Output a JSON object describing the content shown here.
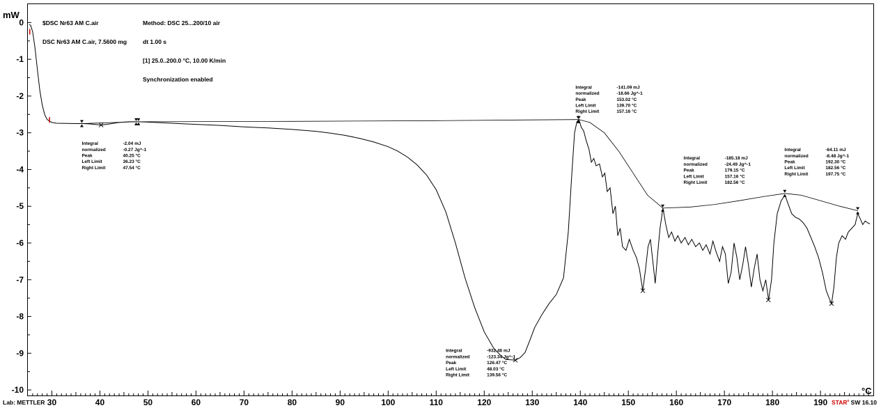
{
  "header": {
    "curve_lines": [
      "$DSC Nr63 AM C.air",
      "DSC Nr63 AM C.air, 7.5600 mg"
    ],
    "method_lines": [
      "Method: DSC 25...200/10 air",
      "dt 1.00 s",
      "[1] 25.0..200.0 °C, 10.00 K/min",
      "Synchronization enabled"
    ]
  },
  "footer": {
    "lab": "Lab: METTLER",
    "software_brand": "STAR",
    "software_version": "SW 16.10"
  },
  "colors": {
    "curve": "#000000",
    "frame": "#000000",
    "limit_marker": "#cc0000"
  },
  "chart_data": {
    "type": "line",
    "ylabel": "mW",
    "xlabel": "°C",
    "xlim": [
      25,
      201
    ],
    "ylim": [
      -10.15,
      0.5
    ],
    "x_ticks": [
      30,
      40,
      50,
      60,
      70,
      80,
      90,
      100,
      110,
      120,
      130,
      140,
      150,
      160,
      170,
      180,
      190
    ],
    "y_ticks": [
      0,
      -1,
      -2,
      -3,
      -4,
      -5,
      -6,
      -7,
      -8,
      -9,
      -10
    ],
    "grid": false,
    "series": [
      {
        "values": [
          [
            25.3,
            -0.05
          ],
          [
            25.6,
            -0.08
          ],
          [
            26,
            -0.25
          ],
          [
            26.5,
            -0.7
          ],
          [
            27,
            -1.3
          ],
          [
            27.5,
            -1.85
          ],
          [
            28,
            -2.25
          ],
          [
            28.5,
            -2.5
          ],
          [
            29,
            -2.64
          ],
          [
            30,
            -2.72
          ],
          [
            31,
            -2.74
          ],
          [
            33,
            -2.745
          ],
          [
            35,
            -2.75
          ],
          [
            36.2,
            -2.75
          ],
          [
            38,
            -2.76
          ],
          [
            40.3,
            -2.79
          ],
          [
            42,
            -2.76
          ],
          [
            44,
            -2.72
          ],
          [
            46,
            -2.7
          ],
          [
            47.5,
            -2.7
          ],
          [
            48,
            -2.7
          ],
          [
            50,
            -2.71
          ],
          [
            55,
            -2.74
          ],
          [
            60,
            -2.77
          ],
          [
            65,
            -2.8
          ],
          [
            70,
            -2.84
          ],
          [
            75,
            -2.87
          ],
          [
            80,
            -2.91
          ],
          [
            85,
            -2.96
          ],
          [
            88,
            -3.01
          ],
          [
            91,
            -3.07
          ],
          [
            94,
            -3.15
          ],
          [
            97,
            -3.25
          ],
          [
            100,
            -3.38
          ],
          [
            102,
            -3.5
          ],
          [
            104,
            -3.66
          ],
          [
            106,
            -3.87
          ],
          [
            108,
            -4.15
          ],
          [
            110,
            -4.55
          ],
          [
            112,
            -5.15
          ],
          [
            114,
            -6.0
          ],
          [
            116,
            -6.95
          ],
          [
            118,
            -7.75
          ],
          [
            120,
            -8.42
          ],
          [
            122,
            -8.87
          ],
          [
            123.5,
            -9.07
          ],
          [
            124.5,
            -9.17
          ],
          [
            126.5,
            -9.19
          ],
          [
            127.5,
            -9.12
          ],
          [
            128.5,
            -8.98
          ],
          [
            129.5,
            -8.65
          ],
          [
            130.5,
            -8.3
          ],
          [
            132,
            -7.95
          ],
          [
            133.5,
            -7.65
          ],
          [
            135,
            -7.4
          ],
          [
            136.5,
            -6.95
          ],
          [
            137.5,
            -5.7
          ],
          [
            138.2,
            -4.2
          ],
          [
            138.8,
            -3.0
          ],
          [
            139.3,
            -2.7
          ],
          [
            139.7,
            -2.64
          ],
          [
            140.2,
            -2.85
          ],
          [
            140.7,
            -2.95
          ],
          [
            141.2,
            -3.2
          ],
          [
            141.8,
            -3.45
          ],
          [
            142.3,
            -3.8
          ],
          [
            142.8,
            -3.7
          ],
          [
            143.3,
            -3.9
          ],
          [
            144,
            -3.85
          ],
          [
            144.6,
            -4.2
          ],
          [
            145.1,
            -4.1
          ],
          [
            145.6,
            -4.6
          ],
          [
            146.2,
            -4.5
          ],
          [
            146.8,
            -5.2
          ],
          [
            147.3,
            -5.0
          ],
          [
            147.8,
            -5.8
          ],
          [
            148.3,
            -5.6
          ],
          [
            148.8,
            -6.1
          ],
          [
            149.5,
            -6.2
          ],
          [
            150.2,
            -5.9
          ],
          [
            151,
            -6.2
          ],
          [
            151.7,
            -6.4
          ],
          [
            152.3,
            -6.7
          ],
          [
            153,
            -7.3
          ],
          [
            153.6,
            -6.7
          ],
          [
            154.1,
            -6.1
          ],
          [
            154.6,
            -5.9
          ],
          [
            155.1,
            -6.5
          ],
          [
            155.6,
            -7.1
          ],
          [
            156.1,
            -6.3
          ],
          [
            156.6,
            -5.6
          ],
          [
            157.2,
            -5.05
          ],
          [
            157.8,
            -5.5
          ],
          [
            158.4,
            -5.85
          ],
          [
            159,
            -5.7
          ],
          [
            159.7,
            -5.95
          ],
          [
            160.3,
            -5.8
          ],
          [
            161,
            -6.0
          ],
          [
            161.8,
            -5.85
          ],
          [
            162.5,
            -6.05
          ],
          [
            163.2,
            -5.9
          ],
          [
            164,
            -6.1
          ],
          [
            164.8,
            -6.0
          ],
          [
            165.5,
            -6.2
          ],
          [
            166.2,
            -6.05
          ],
          [
            167,
            -6.3
          ],
          [
            167.6,
            -5.95
          ],
          [
            168.3,
            -6.25
          ],
          [
            169,
            -6.5
          ],
          [
            169.6,
            -6.1
          ],
          [
            170.2,
            -6.3
          ],
          [
            170.8,
            -7.1
          ],
          [
            171.4,
            -6.8
          ],
          [
            172,
            -6.0
          ],
          [
            172.6,
            -6.4
          ],
          [
            173.2,
            -7.0
          ],
          [
            173.8,
            -6.6
          ],
          [
            174.4,
            -6.1
          ],
          [
            175,
            -6.6
          ],
          [
            175.6,
            -7.2
          ],
          [
            176.2,
            -6.7
          ],
          [
            176.8,
            -6.3
          ],
          [
            177.4,
            -7.0
          ],
          [
            178,
            -7.3
          ],
          [
            178.6,
            -7.0
          ],
          [
            179.2,
            -7.55
          ],
          [
            179.8,
            -7.0
          ],
          [
            180.3,
            -6.0
          ],
          [
            181,
            -5.2
          ],
          [
            181.8,
            -4.85
          ],
          [
            182.6,
            -4.7
          ],
          [
            183.3,
            -4.95
          ],
          [
            184,
            -5.2
          ],
          [
            184.8,
            -5.3
          ],
          [
            185.6,
            -5.35
          ],
          [
            186.4,
            -5.45
          ],
          [
            187.2,
            -5.6
          ],
          [
            188,
            -5.85
          ],
          [
            188.8,
            -6.1
          ],
          [
            189.6,
            -6.4
          ],
          [
            190.4,
            -6.8
          ],
          [
            191.2,
            -7.3
          ],
          [
            191.8,
            -7.5
          ],
          [
            192.3,
            -7.65
          ],
          [
            192.8,
            -7.2
          ],
          [
            193.3,
            -6.4
          ],
          [
            193.8,
            -6.0
          ],
          [
            194.5,
            -5.8
          ],
          [
            195.2,
            -5.9
          ],
          [
            195.8,
            -5.7
          ],
          [
            196.5,
            -5.6
          ],
          [
            197.2,
            -5.5
          ],
          [
            197.75,
            -5.2
          ],
          [
            198.3,
            -5.35
          ],
          [
            198.8,
            -5.5
          ],
          [
            199.3,
            -5.4
          ],
          [
            199.8,
            -5.45
          ],
          [
            200.3,
            -5.48
          ]
        ]
      }
    ],
    "baselines": [
      [
        [
          36.2,
          -2.75
        ],
        [
          47.5,
          -2.7
        ]
      ],
      [
        [
          48,
          -2.7
        ],
        [
          80,
          -2.69
        ],
        [
          110,
          -2.67
        ],
        [
          130,
          -2.65
        ],
        [
          139.7,
          -2.64
        ]
      ],
      [
        [
          139.7,
          -2.64
        ],
        [
          142,
          -2.72
        ],
        [
          145,
          -3.0
        ],
        [
          148,
          -3.5
        ],
        [
          151,
          -4.1
        ],
        [
          154,
          -4.7
        ],
        [
          157.2,
          -5.05
        ]
      ],
      [
        [
          157.2,
          -5.05
        ],
        [
          163,
          -5.02
        ],
        [
          168,
          -4.95
        ],
        [
          173,
          -4.85
        ],
        [
          178,
          -4.74
        ],
        [
          182.6,
          -4.65
        ]
      ],
      [
        [
          182.6,
          -4.65
        ],
        [
          186,
          -4.7
        ],
        [
          190,
          -4.85
        ],
        [
          194,
          -5.0
        ],
        [
          197.75,
          -5.12
        ]
      ]
    ],
    "peaks": [
      {
        "x": 40.25,
        "y": -2.79
      },
      {
        "x": 126.47,
        "y": -9.19
      },
      {
        "x": 153.02,
        "y": -7.3
      },
      {
        "x": 179.15,
        "y": -7.55
      },
      {
        "x": 192.3,
        "y": -7.65
      }
    ],
    "limit_markers": [
      {
        "x": 36.23,
        "y": -2.75
      },
      {
        "x": 47.54,
        "y": -2.7
      },
      {
        "x": 48.03,
        "y": -2.7
      },
      {
        "x": 139.7,
        "y": -2.64
      },
      {
        "x": 139.56,
        "y": -2.64
      },
      {
        "x": 157.16,
        "y": -5.05
      },
      {
        "x": 182.56,
        "y": -4.65
      },
      {
        "x": 197.75,
        "y": -5.12
      }
    ],
    "red_markers": [
      {
        "x": 25.4,
        "y": -0.25
      },
      {
        "x": 29.5,
        "y": -2.65
      }
    ],
    "annotations": [
      {
        "anchor": [
          36.23,
          -3.33
        ],
        "rows": [
          [
            "Integral",
            "-2.04 mJ"
          ],
          [
            " normalized",
            "-0.27 Jg^-1"
          ],
          [
            "Peak",
            "40.25 °C"
          ],
          [
            "Left Limit",
            "36.23 °C"
          ],
          [
            "Right Limit",
            "47.54 °C"
          ]
        ]
      },
      {
        "anchor": [
          139.0,
          -1.8
        ],
        "rows": [
          [
            "Integral",
            "-141.09 mJ"
          ],
          [
            " normalized",
            "-18.66 Jg^-1"
          ],
          [
            "Peak",
            "153.02 °C"
          ],
          [
            "Left Limit",
            "139.70 °C"
          ],
          [
            "Right Limit",
            "157.16 °C"
          ]
        ]
      },
      {
        "anchor": [
          161.5,
          -3.73
        ],
        "rows": [
          [
            "Integral",
            "-185.18 mJ"
          ],
          [
            " normalized",
            "-24.49 Jg^-1"
          ],
          [
            "Peak",
            "179.15 °C"
          ],
          [
            "Left Limit",
            "157.16 °C"
          ],
          [
            "Right Limit",
            "182.56 °C"
          ]
        ]
      },
      {
        "anchor": [
          182.5,
          -3.5
        ],
        "rows": [
          [
            "Integral",
            "-64.11 mJ"
          ],
          [
            " normalized",
            "-8.48 Jg^-1"
          ],
          [
            "Peak",
            "192.30 °C"
          ],
          [
            "Left Limit",
            "182.56 °C"
          ],
          [
            "Right Limit",
            "197.75 °C"
          ]
        ]
      },
      {
        "anchor": [
          112.0,
          -8.97
        ],
        "rows": [
          [
            "Integral",
            "-932.46 mJ"
          ],
          [
            " normalized",
            "-123.34 Jg^-1"
          ],
          [
            "Peak",
            "126.47 °C"
          ],
          [
            "Left Limit",
            "48.03 °C"
          ],
          [
            "Right Limit",
            "139.56 °C"
          ]
        ]
      }
    ]
  }
}
